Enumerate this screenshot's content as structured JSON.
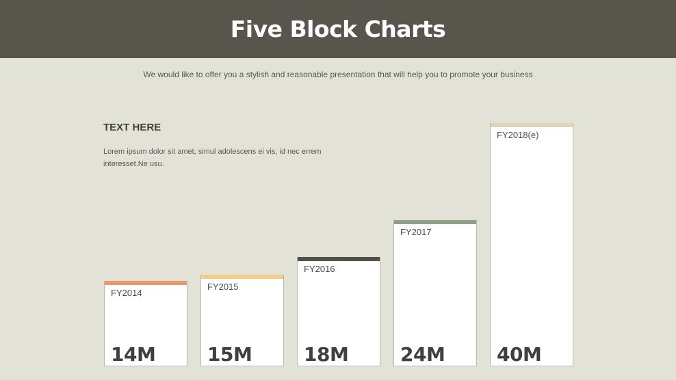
{
  "header": {
    "title": "Five Block Charts"
  },
  "subtitle": "We would like to offer you a stylish and reasonable presentation that will help you to promote your business",
  "text_block": {
    "heading": "TEXT HERE",
    "body": "Lorem ipsum dolor sit amet, simul adolescens ei vis, id nec errem interesset.Ne usu."
  },
  "chart_data": {
    "type": "bar",
    "categories": [
      "FY2014",
      "FY2015",
      "FY2016",
      "FY2017",
      "FY2018(e)"
    ],
    "values": [
      14,
      15,
      18,
      24,
      40
    ],
    "value_labels": [
      "14M",
      "15M",
      "18M",
      "24M",
      "40M"
    ],
    "colors": [
      "#f0956a",
      "#f3cd87",
      "#545048",
      "#8fa185",
      "#dcd6b4"
    ],
    "title": "",
    "xlabel": "",
    "ylabel": "",
    "grid": false
  }
}
